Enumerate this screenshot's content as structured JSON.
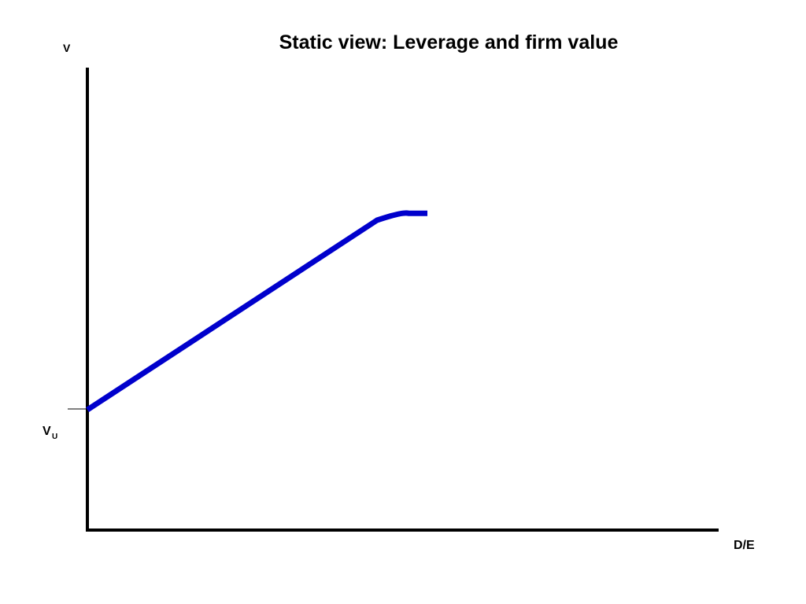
{
  "chart_data": {
    "type": "line",
    "title": "Static view: Leverage and firm value",
    "xlabel": "D/E",
    "ylabel": "V",
    "y_reference": {
      "label_main": "V",
      "label_sub": "U"
    },
    "series": [
      {
        "color": "#0000cc",
        "points": [
          [
            0,
            0
          ],
          [
            0.46,
            0.41
          ],
          [
            0.5,
            0.425
          ],
          [
            0.54,
            0.425
          ]
        ]
      }
    ],
    "xlim": [
      0,
      1
    ],
    "ylim": [
      -0.26,
      0.74
    ],
    "grid": false,
    "legend": "none"
  }
}
